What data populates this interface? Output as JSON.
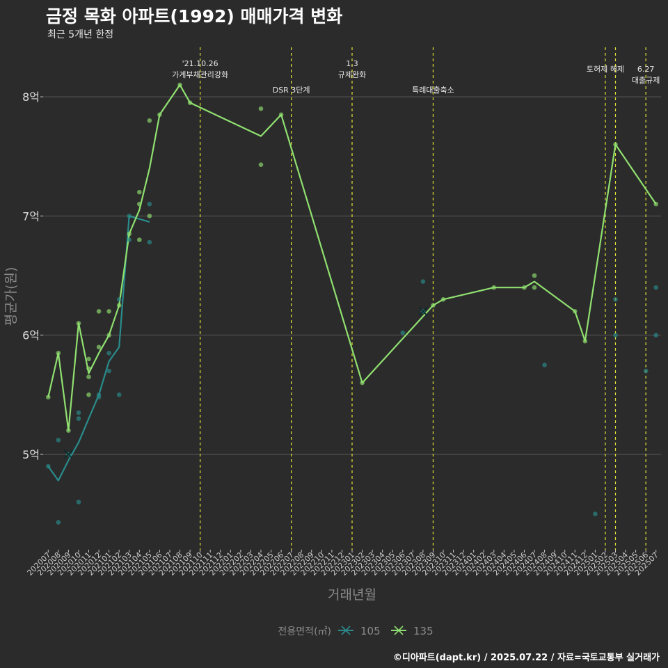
{
  "chart_data": {
    "type": "line",
    "title": "금정 목화 아파트(1992) 매매가격 변화",
    "subtitle": "최근 5개년 한정",
    "xlabel": "거래년월",
    "ylabel": "평균가(원)",
    "caption": "©디아파트(dapt.kr) / 2025.07.22 / 자료=국토교통부 실거래가",
    "legend_title": "전용면적(㎡)",
    "legend_position": "bottom",
    "grid": true,
    "y_ticks": [
      {
        "value": 5,
        "label": "5억"
      },
      {
        "value": 6,
        "label": "6억"
      },
      {
        "value": 7,
        "label": "7억"
      },
      {
        "value": 8,
        "label": "8억"
      }
    ],
    "ylim": [
      4.2,
      8.45
    ],
    "categories": [
      "202007",
      "202008",
      "202009",
      "202010",
      "202011",
      "202012",
      "202101",
      "202102",
      "202103",
      "202104",
      "202105",
      "202106",
      "202107",
      "202108",
      "202109",
      "202110",
      "202111",
      "202112",
      "202201",
      "202202",
      "202203",
      "202204",
      "202205",
      "202206",
      "202207",
      "202208",
      "202209",
      "202210",
      "202211",
      "202212",
      "202301",
      "202302",
      "202303",
      "202304",
      "202305",
      "202306",
      "202307",
      "202308",
      "202309",
      "202310",
      "202311",
      "202312",
      "202401",
      "202402",
      "202403",
      "202404",
      "202405",
      "202406",
      "202407",
      "202408",
      "202409",
      "202410",
      "202411",
      "202412",
      "202501",
      "202502",
      "202503",
      "202504",
      "202505",
      "202506",
      "202507"
    ],
    "series": [
      {
        "name": "105",
        "color": "#2a8c8c",
        "line": [
          [
            "202007",
            4.9
          ],
          [
            "202008",
            4.78
          ],
          [
            "202009",
            4.95
          ],
          [
            "202010",
            5.1
          ],
          [
            "202011",
            5.3
          ],
          [
            "202012",
            5.5
          ],
          [
            "202101",
            5.78
          ],
          [
            "202102",
            5.9
          ],
          [
            "202103",
            7.0
          ],
          [
            "202105",
            6.95
          ]
        ],
        "points": [
          [
            "202007",
            4.9
          ],
          [
            "202008",
            4.43
          ],
          [
            "202008",
            5.12
          ],
          [
            "202009",
            5.0
          ],
          [
            "202010",
            5.3
          ],
          [
            "202010",
            5.35
          ],
          [
            "202010",
            4.6
          ],
          [
            "202012",
            5.5
          ],
          [
            "202012",
            5.48
          ],
          [
            "202101",
            5.7
          ],
          [
            "202101",
            5.85
          ],
          [
            "202102",
            5.5
          ],
          [
            "202102",
            6.3
          ],
          [
            "202103",
            7.0
          ],
          [
            "202103",
            6.8
          ],
          [
            "202105",
            7.1
          ],
          [
            "202105",
            6.78
          ],
          [
            "202306",
            6.02
          ],
          [
            "202308",
            6.45
          ],
          [
            "202308",
            6.2
          ],
          [
            "202408",
            5.75
          ],
          [
            "202501",
            4.5
          ],
          [
            "202503",
            6.3
          ],
          [
            "202503",
            6.0
          ],
          [
            "202506",
            5.7
          ],
          [
            "202507",
            6.4
          ],
          [
            "202507",
            6.0
          ]
        ],
        "cross_marks": [
          [
            "202009",
            5.0
          ],
          [
            "202308",
            6.2
          ]
        ]
      },
      {
        "name": "135",
        "color": "#90e070",
        "line": [
          [
            "202007",
            5.48
          ],
          [
            "202008",
            5.85
          ],
          [
            "202009",
            5.2
          ],
          [
            "202010",
            6.1
          ],
          [
            "202011",
            5.68
          ],
          [
            "202012",
            5.85
          ],
          [
            "202101",
            6.0
          ],
          [
            "202102",
            6.25
          ],
          [
            "202103",
            6.85
          ],
          [
            "202104",
            7.05
          ],
          [
            "202105",
            7.4
          ],
          [
            "202106",
            7.85
          ],
          [
            "202108",
            8.1
          ],
          [
            "202109",
            7.95
          ],
          [
            "202204",
            7.67
          ],
          [
            "202206",
            7.85
          ],
          [
            "202302",
            5.6
          ],
          [
            "202309",
            6.25
          ],
          [
            "202310",
            6.3
          ],
          [
            "202403",
            6.4
          ],
          [
            "202406",
            6.4
          ],
          [
            "202407",
            6.45
          ],
          [
            "202411",
            6.2
          ],
          [
            "202412",
            5.95
          ],
          [
            "202503",
            7.6
          ],
          [
            "202507",
            7.1
          ]
        ],
        "points": [
          [
            "202007",
            5.48
          ],
          [
            "202008",
            5.85
          ],
          [
            "202009",
            5.2
          ],
          [
            "202010",
            6.1
          ],
          [
            "202011",
            5.8
          ],
          [
            "202011",
            5.72
          ],
          [
            "202011",
            5.65
          ],
          [
            "202011",
            5.5
          ],
          [
            "202012",
            6.2
          ],
          [
            "202012",
            5.9
          ],
          [
            "202101",
            6.2
          ],
          [
            "202101",
            6.0
          ],
          [
            "202102",
            6.25
          ],
          [
            "202103",
            6.85
          ],
          [
            "202104",
            7.2
          ],
          [
            "202104",
            7.1
          ],
          [
            "202104",
            6.8
          ],
          [
            "202105",
            7.8
          ],
          [
            "202105",
            7.0
          ],
          [
            "202106",
            7.85
          ],
          [
            "202108",
            8.1
          ],
          [
            "202109",
            7.95
          ],
          [
            "202204",
            7.9
          ],
          [
            "202204",
            7.43
          ],
          [
            "202206",
            7.85
          ],
          [
            "202302",
            5.6
          ],
          [
            "202309",
            6.25
          ],
          [
            "202310",
            6.3
          ],
          [
            "202403",
            6.4
          ],
          [
            "202406",
            6.4
          ],
          [
            "202407",
            6.5
          ],
          [
            "202407",
            6.4
          ],
          [
            "202411",
            6.2
          ],
          [
            "202412",
            5.95
          ],
          [
            "202503",
            7.6
          ],
          [
            "202507",
            7.1
          ]
        ]
      }
    ],
    "annotations": [
      {
        "x": "202110",
        "lines": [
          "'21.10.26",
          "가계부채관리강화"
        ],
        "row": 1
      },
      {
        "x": "202207",
        "lines": [
          "DSR 3단계"
        ],
        "row": 3
      },
      {
        "x": "202301",
        "lines": [
          "1.3",
          "규제완화"
        ],
        "row": 1
      },
      {
        "x": "202309",
        "lines": [
          "특례대출축소"
        ],
        "row": 3
      },
      {
        "x": "202502",
        "lines": [
          "토허제 해제"
        ],
        "row": 2
      },
      {
        "x": "202503",
        "lines": [],
        "row": 0
      },
      {
        "x": "202506",
        "lines": [
          "6.27",
          "대출규제"
        ],
        "row": 2
      }
    ]
  }
}
